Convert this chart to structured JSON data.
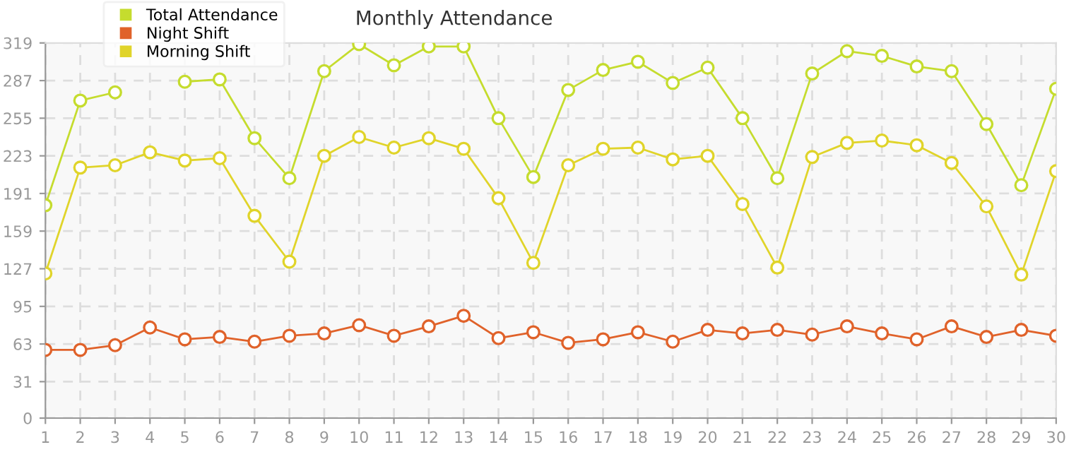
{
  "chart_data": {
    "type": "line",
    "title": "Monthly Attendance",
    "x": [
      1,
      2,
      3,
      4,
      5,
      6,
      7,
      8,
      9,
      10,
      11,
      12,
      13,
      14,
      15,
      16,
      17,
      18,
      19,
      20,
      21,
      22,
      23,
      24,
      25,
      26,
      27,
      28,
      29,
      30
    ],
    "series": [
      {
        "name": "Total Attendance",
        "color": "#c5dc2e",
        "values": [
          181,
          270,
          277,
          null,
          286,
          288,
          238,
          204,
          295,
          318,
          300,
          316,
          316,
          255,
          205,
          279,
          296,
          303,
          285,
          298,
          255,
          204,
          293,
          312,
          308,
          299,
          295,
          250,
          198,
          280
        ]
      },
      {
        "name": "Night Shift",
        "color": "#e0622a",
        "values": [
          58,
          58,
          62,
          77,
          67,
          69,
          65,
          70,
          72,
          79,
          70,
          78,
          87,
          68,
          73,
          64,
          67,
          73,
          65,
          75,
          72,
          75,
          71,
          78,
          72,
          67,
          78,
          69,
          75,
          70
        ]
      },
      {
        "name": "Morning Shift",
        "color": "#e0d42a",
        "values": [
          123,
          213,
          215,
          226,
          219,
          221,
          172,
          133,
          223,
          239,
          230,
          238,
          229,
          187,
          132,
          215,
          229,
          230,
          220,
          223,
          182,
          128,
          222,
          234,
          236,
          232,
          217,
          180,
          122,
          210
        ]
      }
    ],
    "xlim": [
      1,
      30
    ],
    "xticks": [
      1,
      2,
      3,
      4,
      5,
      6,
      7,
      8,
      9,
      10,
      11,
      12,
      13,
      14,
      15,
      16,
      17,
      18,
      19,
      20,
      21,
      22,
      23,
      24,
      25,
      26,
      27,
      28,
      29,
      30
    ],
    "ylim": [
      0,
      319
    ],
    "yticks": [
      0,
      31,
      63,
      95,
      127,
      159,
      191,
      223,
      255,
      287,
      319
    ],
    "grid": true,
    "legend": "top left",
    "marker": "circle",
    "line_style": "solid"
  }
}
